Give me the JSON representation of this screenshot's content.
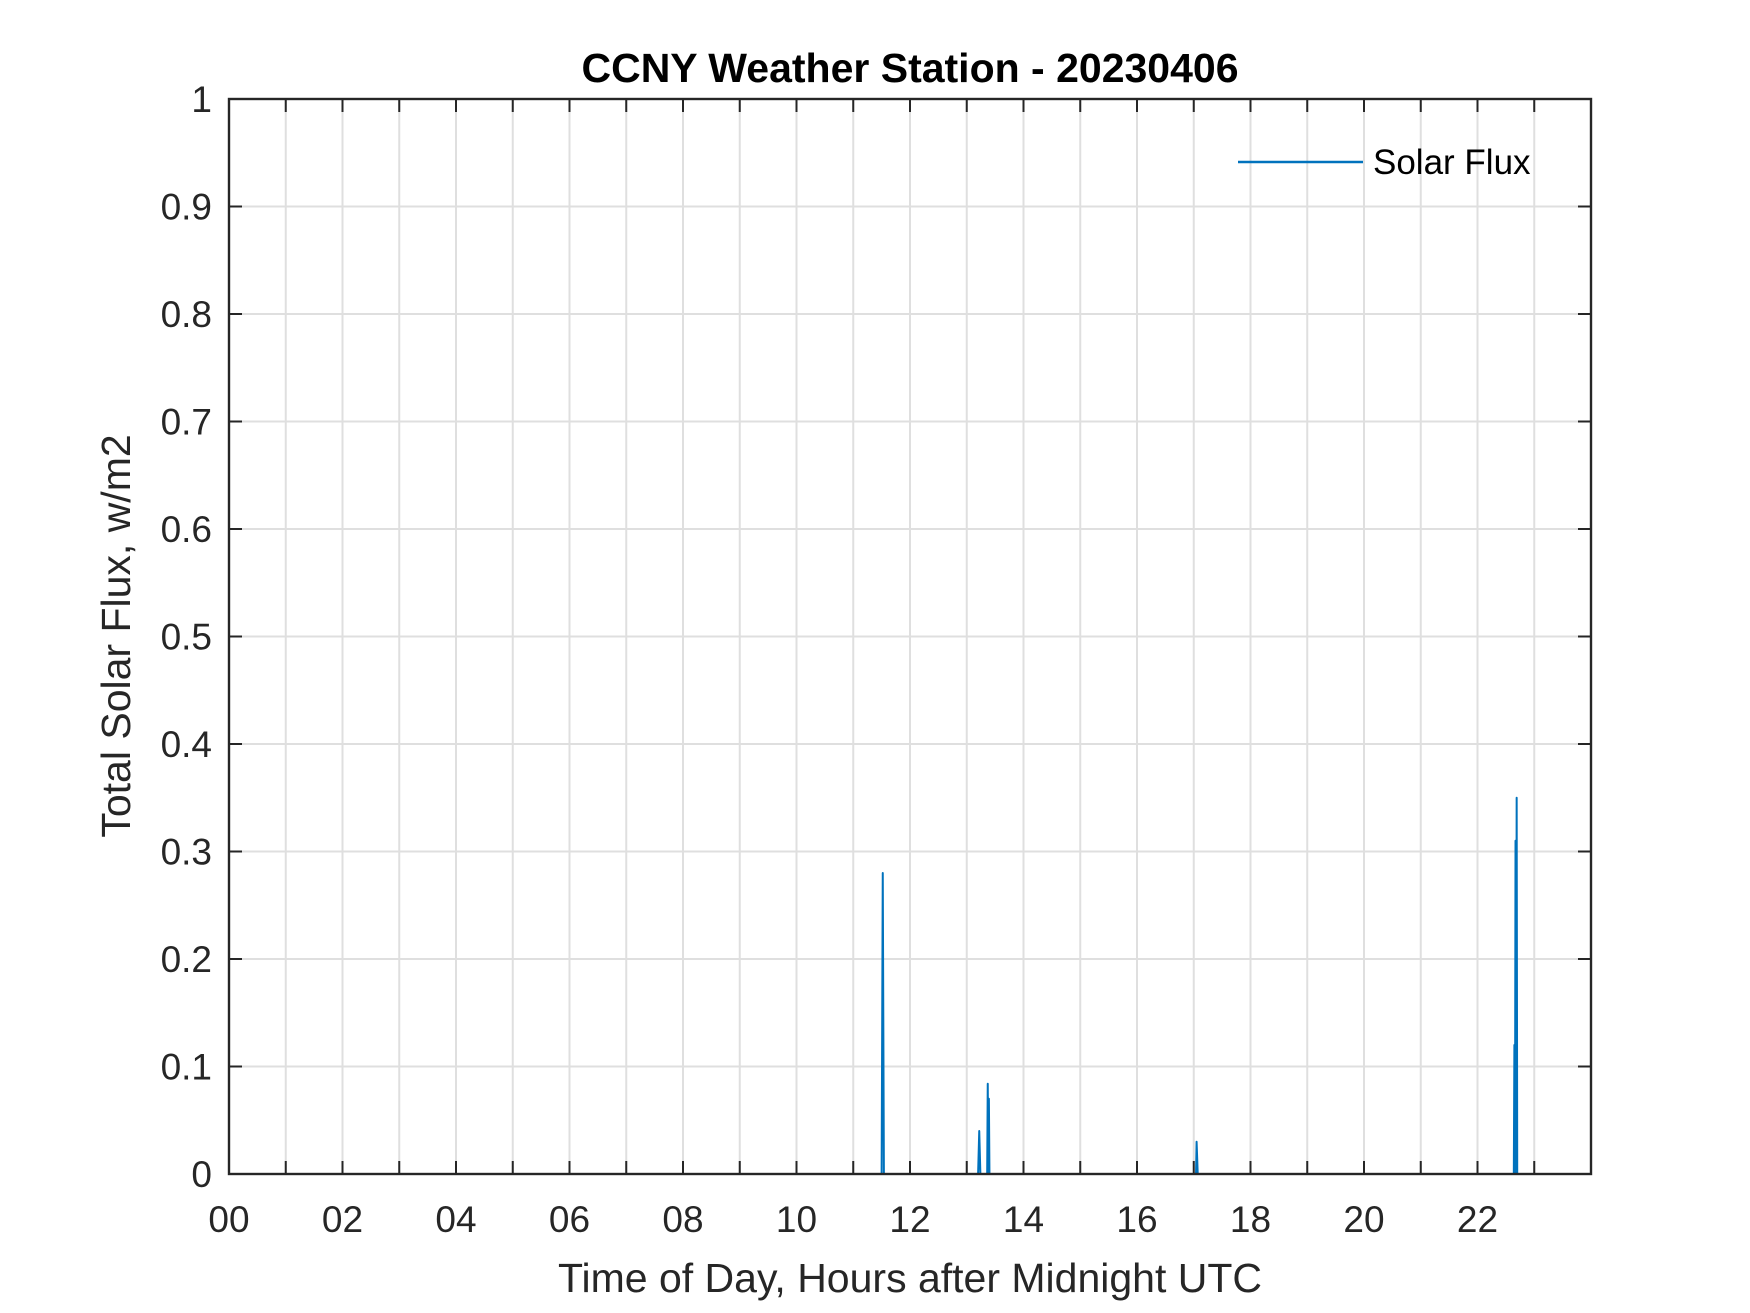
{
  "chart_data": {
    "type": "line",
    "title": "CCNY Weather Station - 20230406",
    "xlabel": "Time of Day, Hours after Midnight UTC",
    "ylabel": "Total Solar Flux, w/m2",
    "xlim": [
      0,
      24
    ],
    "ylim": [
      0,
      1
    ],
    "x_ticks": [
      0,
      2,
      4,
      6,
      8,
      10,
      12,
      14,
      16,
      18,
      20,
      22
    ],
    "x_tick_labels": [
      "00",
      "02",
      "04",
      "06",
      "08",
      "10",
      "12",
      "14",
      "16",
      "18",
      "20",
      "22"
    ],
    "x_minor_grid_step": 1,
    "y_ticks": [
      0,
      0.1,
      0.2,
      0.3,
      0.4,
      0.5,
      0.6,
      0.7,
      0.8,
      0.9,
      1
    ],
    "y_tick_labels": [
      "0",
      "0.1",
      "0.2",
      "0.3",
      "0.4",
      "0.5",
      "0.6",
      "0.7",
      "0.8",
      "0.9",
      "1"
    ],
    "grid": true,
    "legend_position": "top-right",
    "series": [
      {
        "name": "Solar Flux",
        "color": "#0072BD",
        "x": [
          0,
          11.5,
          11.52,
          11.54,
          13.2,
          13.22,
          13.24,
          13.36,
          13.37,
          13.38,
          13.39,
          13.4,
          17.04,
          17.05,
          17.07,
          22.64,
          22.65,
          22.66,
          22.67,
          22.68,
          22.69,
          22.7,
          24
        ],
        "y": [
          0,
          0,
          0.28,
          0,
          0,
          0.04,
          0,
          0,
          0.084,
          0,
          0.07,
          0,
          0,
          0.03,
          0,
          0,
          0.12,
          0,
          0.31,
          0,
          0.35,
          0,
          0
        ]
      }
    ]
  }
}
